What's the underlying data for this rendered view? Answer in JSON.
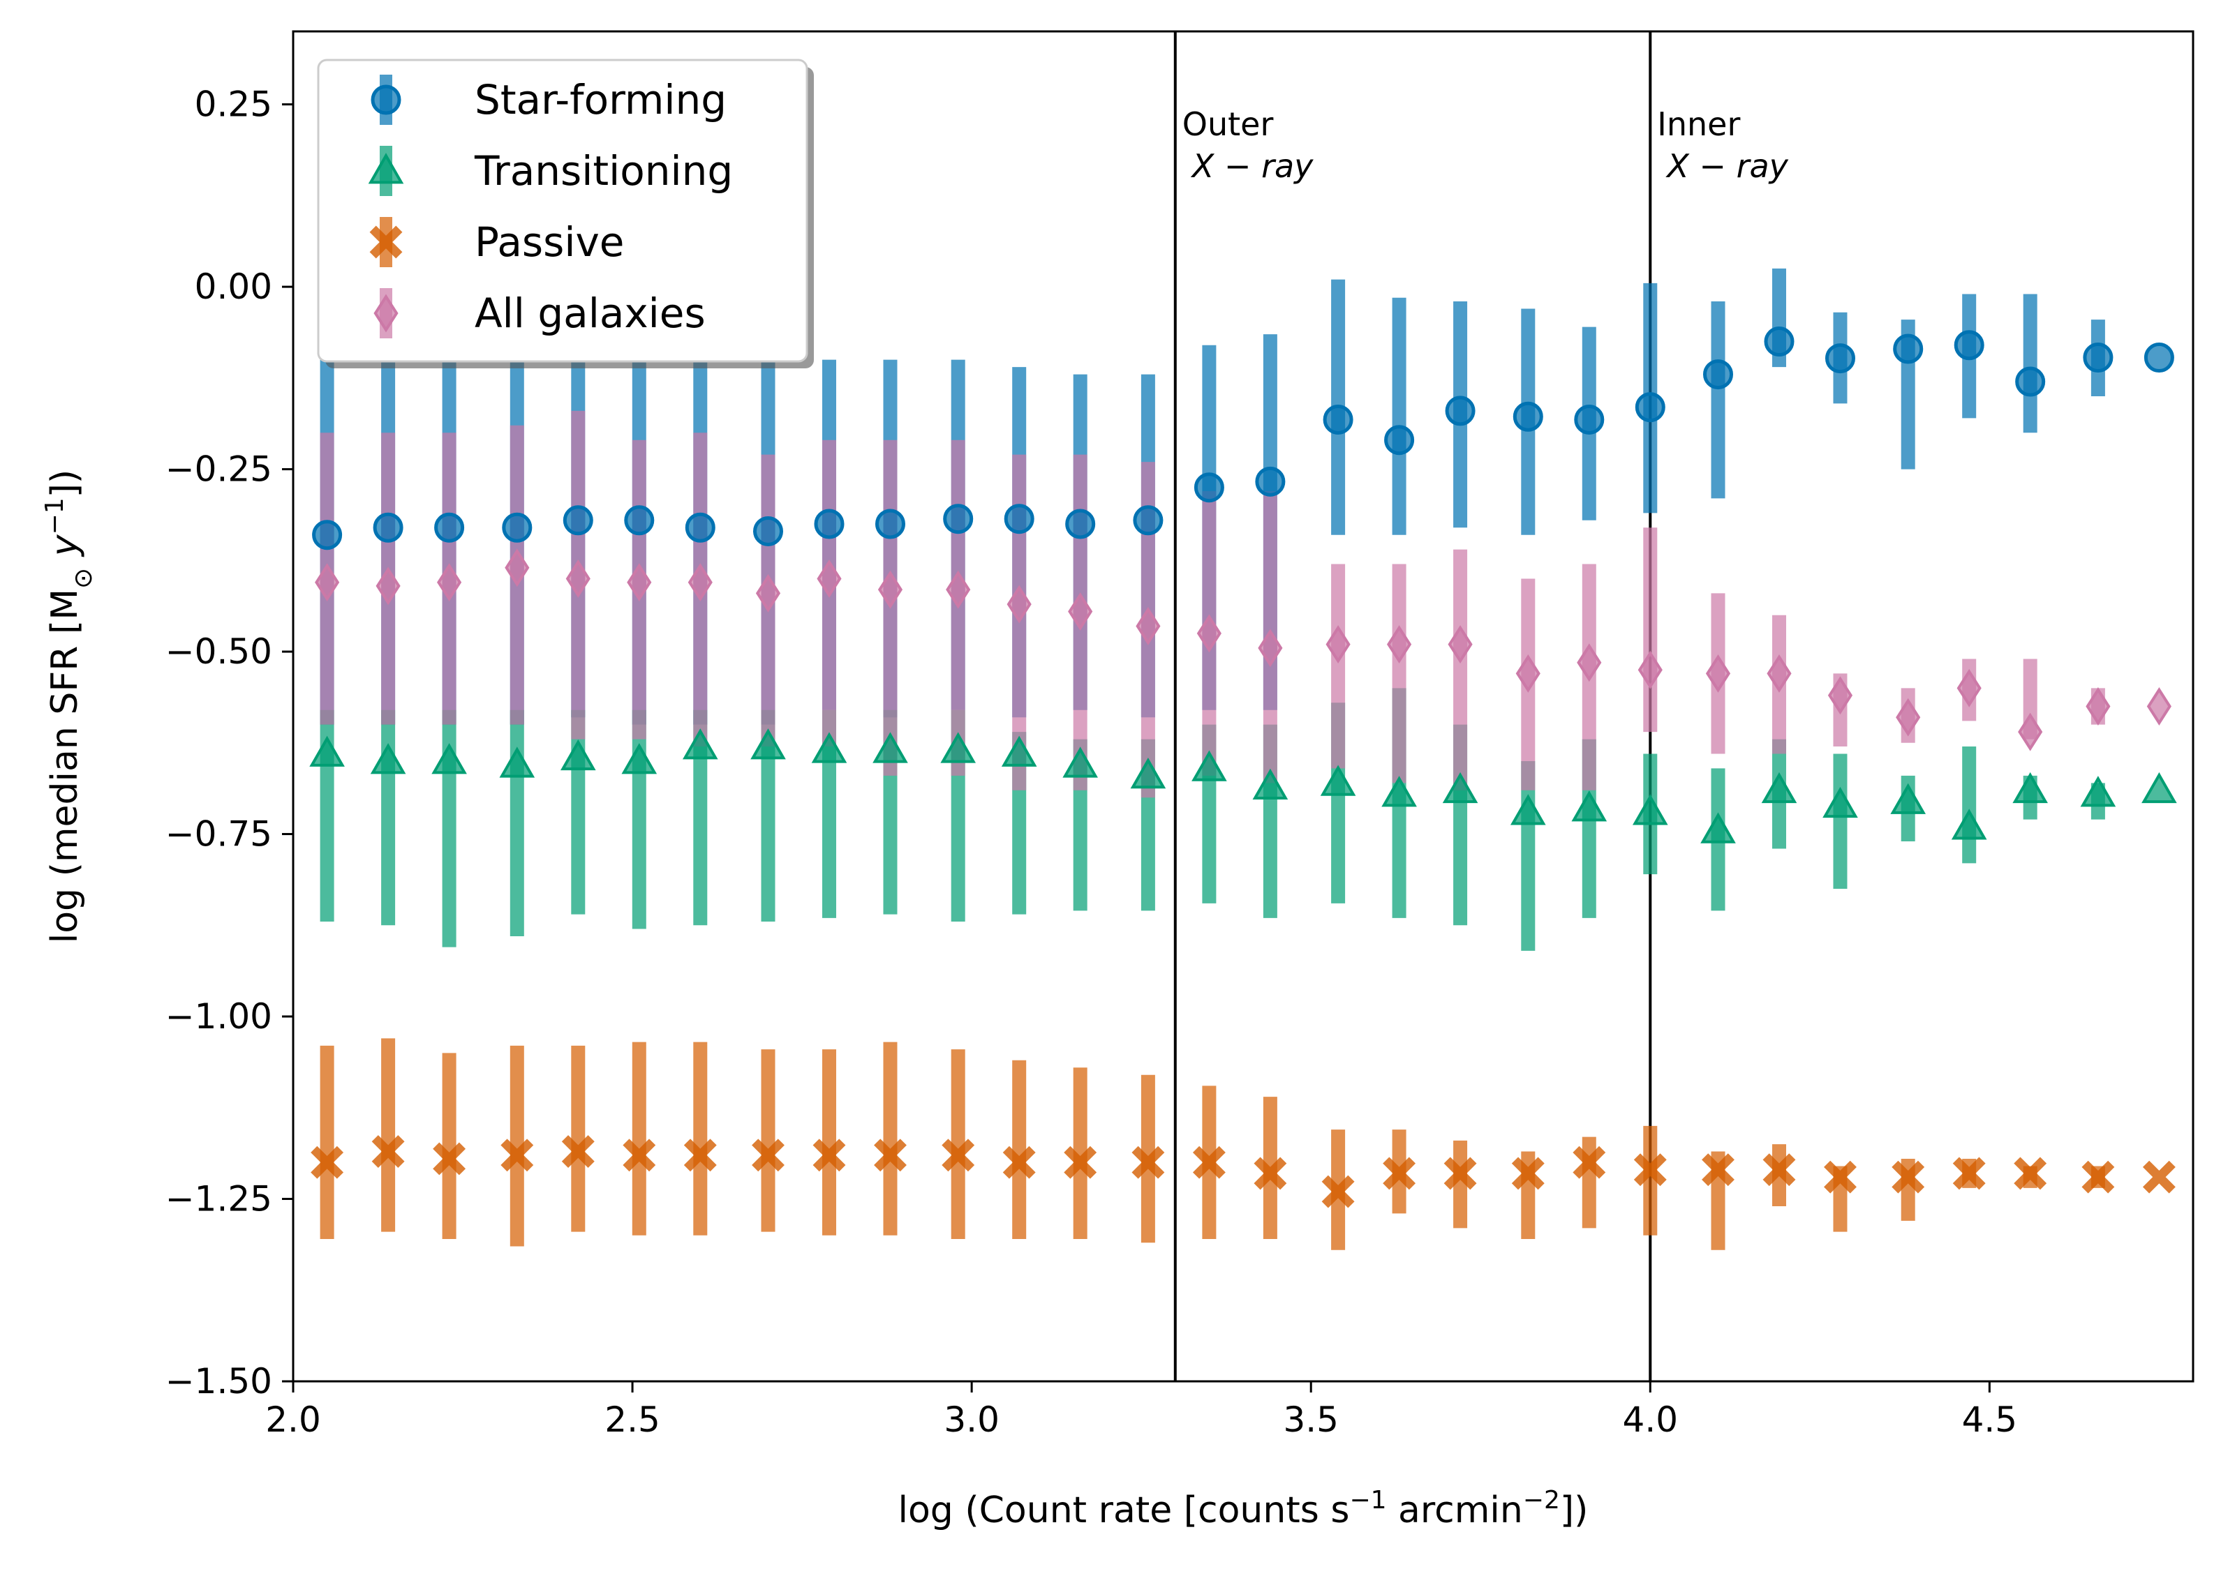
{
  "chart_data": {
    "type": "scatter",
    "xlabel_parts": [
      "log (Count rate [counts s",
      "−1",
      " arcmin",
      "−2",
      "])"
    ],
    "ylabel_parts": [
      "log (median SFR [M",
      "⊙",
      " ",
      "y",
      "−1",
      "])"
    ],
    "xlim": [
      2.0,
      4.8
    ],
    "ylim": [
      -1.5,
      0.35
    ],
    "xticks": [
      2.0,
      2.5,
      3.0,
      3.5,
      4.0,
      4.5
    ],
    "xtick_labels": [
      "2.0",
      "2.5",
      "3.0",
      "3.5",
      "4.0",
      "4.5"
    ],
    "yticks": [
      0.25,
      0.0,
      -0.25,
      -0.5,
      -0.75,
      -1.0,
      -1.25,
      -1.5
    ],
    "ytick_labels": [
      "0.25",
      "0.00",
      "−0.25",
      "−0.50",
      "−0.75",
      "−1.00",
      "−1.25",
      "−1.50"
    ],
    "x": [
      2.05,
      2.14,
      2.23,
      2.33,
      2.42,
      2.51,
      2.6,
      2.7,
      2.79,
      2.88,
      2.98,
      3.07,
      3.16,
      3.26,
      3.35,
      3.44,
      3.54,
      3.63,
      3.72,
      3.82,
      3.91,
      4.0,
      4.1,
      4.19,
      4.28,
      4.38,
      4.47,
      4.56,
      4.66,
      4.75
    ],
    "series": [
      {
        "name": "Star-forming",
        "color": "#0072b2",
        "marker": "circle",
        "y": [
          -0.34,
          -0.33,
          -0.33,
          -0.33,
          -0.32,
          -0.32,
          -0.33,
          -0.335,
          -0.325,
          -0.325,
          -0.318,
          -0.318,
          -0.325,
          -0.32,
          -0.275,
          -0.267,
          -0.182,
          -0.21,
          -0.17,
          -0.178,
          -0.182,
          -0.165,
          -0.12,
          -0.075,
          -0.098,
          -0.085,
          -0.08,
          -0.13,
          -0.097,
          -0.097
        ],
        "low": [
          -0.6,
          -0.6,
          -0.6,
          -0.6,
          -0.59,
          -0.6,
          -0.6,
          -0.6,
          -0.58,
          -0.59,
          -0.58,
          -0.59,
          -0.58,
          -0.59,
          -0.58,
          -0.58,
          -0.34,
          -0.34,
          -0.33,
          -0.34,
          -0.32,
          -0.31,
          -0.29,
          -0.11,
          -0.16,
          -0.25,
          -0.18,
          -0.2,
          -0.15,
          -0.097
        ],
        "high": [
          -0.1,
          -0.1,
          -0.1,
          -0.1,
          -0.1,
          -0.1,
          -0.1,
          -0.1,
          -0.1,
          -0.1,
          -0.1,
          -0.11,
          -0.12,
          -0.12,
          -0.08,
          -0.065,
          0.01,
          -0.015,
          -0.02,
          -0.03,
          -0.055,
          0.005,
          -0.02,
          0.025,
          -0.035,
          -0.045,
          -0.01,
          -0.01,
          -0.045,
          -0.097
        ]
      },
      {
        "name": "Transitioning",
        "color": "#009e73",
        "marker": "triangle",
        "y": [
          -0.64,
          -0.65,
          -0.65,
          -0.655,
          -0.645,
          -0.65,
          -0.63,
          -0.63,
          -0.635,
          -0.635,
          -0.635,
          -0.64,
          -0.655,
          -0.67,
          -0.66,
          -0.685,
          -0.68,
          -0.695,
          -0.69,
          -0.72,
          -0.715,
          -0.72,
          -0.745,
          -0.69,
          -0.71,
          -0.705,
          -0.74,
          -0.69,
          -0.695,
          -0.69
        ],
        "low": [
          -0.87,
          -0.875,
          -0.905,
          -0.89,
          -0.86,
          -0.88,
          -0.875,
          -0.87,
          -0.865,
          -0.86,
          -0.87,
          -0.86,
          -0.855,
          -0.855,
          -0.845,
          -0.865,
          -0.845,
          -0.865,
          -0.875,
          -0.91,
          -0.865,
          -0.805,
          -0.855,
          -0.77,
          -0.825,
          -0.76,
          -0.79,
          -0.73,
          -0.73,
          -0.69
        ],
        "high": [
          -0.58,
          -0.58,
          -0.58,
          -0.58,
          -0.58,
          -0.58,
          -0.58,
          -0.58,
          -0.58,
          -0.58,
          -0.58,
          -0.61,
          -0.62,
          -0.62,
          -0.6,
          -0.6,
          -0.57,
          -0.55,
          -0.6,
          -0.65,
          -0.62,
          -0.64,
          -0.66,
          -0.62,
          -0.64,
          -0.67,
          -0.63,
          -0.67,
          -0.68,
          -0.69
        ]
      },
      {
        "name": "Passive",
        "color": "#d55e00",
        "marker": "x",
        "y": [
          -1.2,
          -1.185,
          -1.195,
          -1.19,
          -1.185,
          -1.19,
          -1.19,
          -1.19,
          -1.19,
          -1.19,
          -1.19,
          -1.2,
          -1.2,
          -1.2,
          -1.2,
          -1.215,
          -1.24,
          -1.215,
          -1.215,
          -1.215,
          -1.2,
          -1.21,
          -1.21,
          -1.21,
          -1.22,
          -1.22,
          -1.215,
          -1.215,
          -1.22,
          -1.22
        ],
        "low": [
          -1.305,
          -1.295,
          -1.305,
          -1.315,
          -1.295,
          -1.3,
          -1.3,
          -1.295,
          -1.3,
          -1.3,
          -1.305,
          -1.305,
          -1.305,
          -1.31,
          -1.305,
          -1.305,
          -1.32,
          -1.27,
          -1.29,
          -1.305,
          -1.29,
          -1.3,
          -1.32,
          -1.26,
          -1.295,
          -1.28,
          -1.235,
          -1.235,
          -1.235,
          -1.22
        ],
        "high": [
          -1.04,
          -1.03,
          -1.05,
          -1.04,
          -1.04,
          -1.035,
          -1.035,
          -1.045,
          -1.045,
          -1.035,
          -1.045,
          -1.06,
          -1.07,
          -1.08,
          -1.095,
          -1.11,
          -1.155,
          -1.155,
          -1.17,
          -1.185,
          -1.165,
          -1.15,
          -1.185,
          -1.175,
          -1.205,
          -1.195,
          -1.195,
          -1.205,
          -1.205,
          -1.22
        ]
      },
      {
        "name": "All galaxies",
        "color": "#cc79a7",
        "marker": "diamond",
        "y": [
          -0.405,
          -0.41,
          -0.405,
          -0.385,
          -0.4,
          -0.405,
          -0.405,
          -0.42,
          -0.4,
          -0.415,
          -0.415,
          -0.435,
          -0.445,
          -0.465,
          -0.475,
          -0.495,
          -0.49,
          -0.49,
          -0.49,
          -0.53,
          -0.515,
          -0.525,
          -0.53,
          -0.53,
          -0.56,
          -0.59,
          -0.55,
          -0.61,
          -0.575,
          -0.575
        ],
        "low": [
          -0.6,
          -0.6,
          -0.6,
          -0.6,
          -0.62,
          -0.62,
          -0.63,
          -0.63,
          -0.63,
          -0.67,
          -0.67,
          -0.69,
          -0.69,
          -0.7,
          -0.67,
          -0.68,
          -0.66,
          -0.68,
          -0.69,
          -0.69,
          -0.69,
          -0.61,
          -0.64,
          -0.64,
          -0.63,
          -0.625,
          -0.595,
          -0.62,
          -0.6,
          -0.575
        ],
        "high": [
          -0.2,
          -0.2,
          -0.2,
          -0.19,
          -0.17,
          -0.21,
          -0.2,
          -0.23,
          -0.21,
          -0.21,
          -0.21,
          -0.23,
          -0.23,
          -0.24,
          -0.28,
          -0.28,
          -0.38,
          -0.38,
          -0.36,
          -0.4,
          -0.38,
          -0.33,
          -0.42,
          -0.45,
          -0.53,
          -0.55,
          -0.51,
          -0.51,
          -0.55,
          -0.575
        ]
      }
    ],
    "vlines": [
      {
        "x": 3.3,
        "label_line1": "Outer",
        "label_line2": "X − ray"
      },
      {
        "x": 4.0,
        "label_line1": "Inner",
        "label_line2": "X − ray"
      }
    ],
    "legend_position": "top-left"
  }
}
